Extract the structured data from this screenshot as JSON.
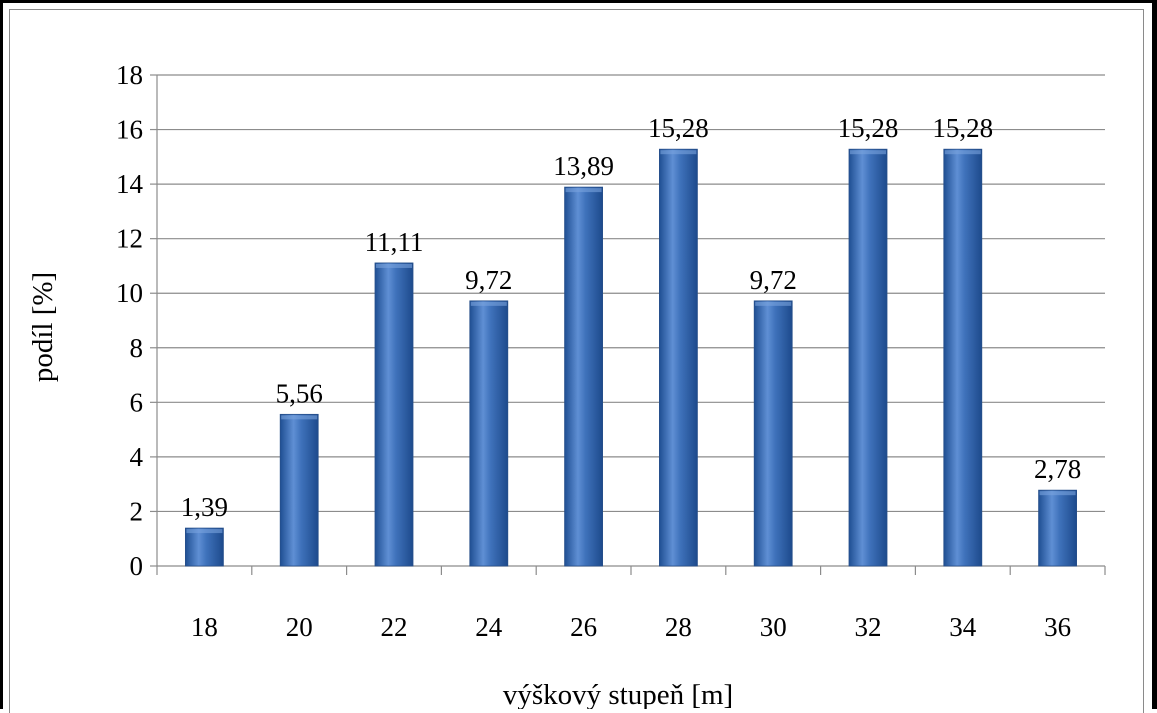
{
  "chart_data": {
    "type": "bar",
    "title": "",
    "xlabel": "výškový stupeň [m]",
    "ylabel": "podíl [%]",
    "categories": [
      "18",
      "20",
      "22",
      "24",
      "26",
      "28",
      "30",
      "32",
      "34",
      "36"
    ],
    "values": [
      1.39,
      5.56,
      11.11,
      9.72,
      13.89,
      15.28,
      9.72,
      15.28,
      15.28,
      2.78
    ],
    "data_labels": [
      "1,39",
      "5,56",
      "11,11",
      "9,72",
      "13,89",
      "15,28",
      "9,72",
      "15,28",
      "15,28",
      "2,78"
    ],
    "ylim": [
      0,
      18
    ],
    "yticks": [
      0,
      2,
      4,
      6,
      8,
      10,
      12,
      14,
      16,
      18
    ],
    "ytick_labels": [
      "0",
      "2",
      "4",
      "6",
      "8",
      "10",
      "12",
      "14",
      "16",
      "18"
    ],
    "grid": true,
    "legend": "none",
    "bar_color": "#3d6fb5"
  }
}
